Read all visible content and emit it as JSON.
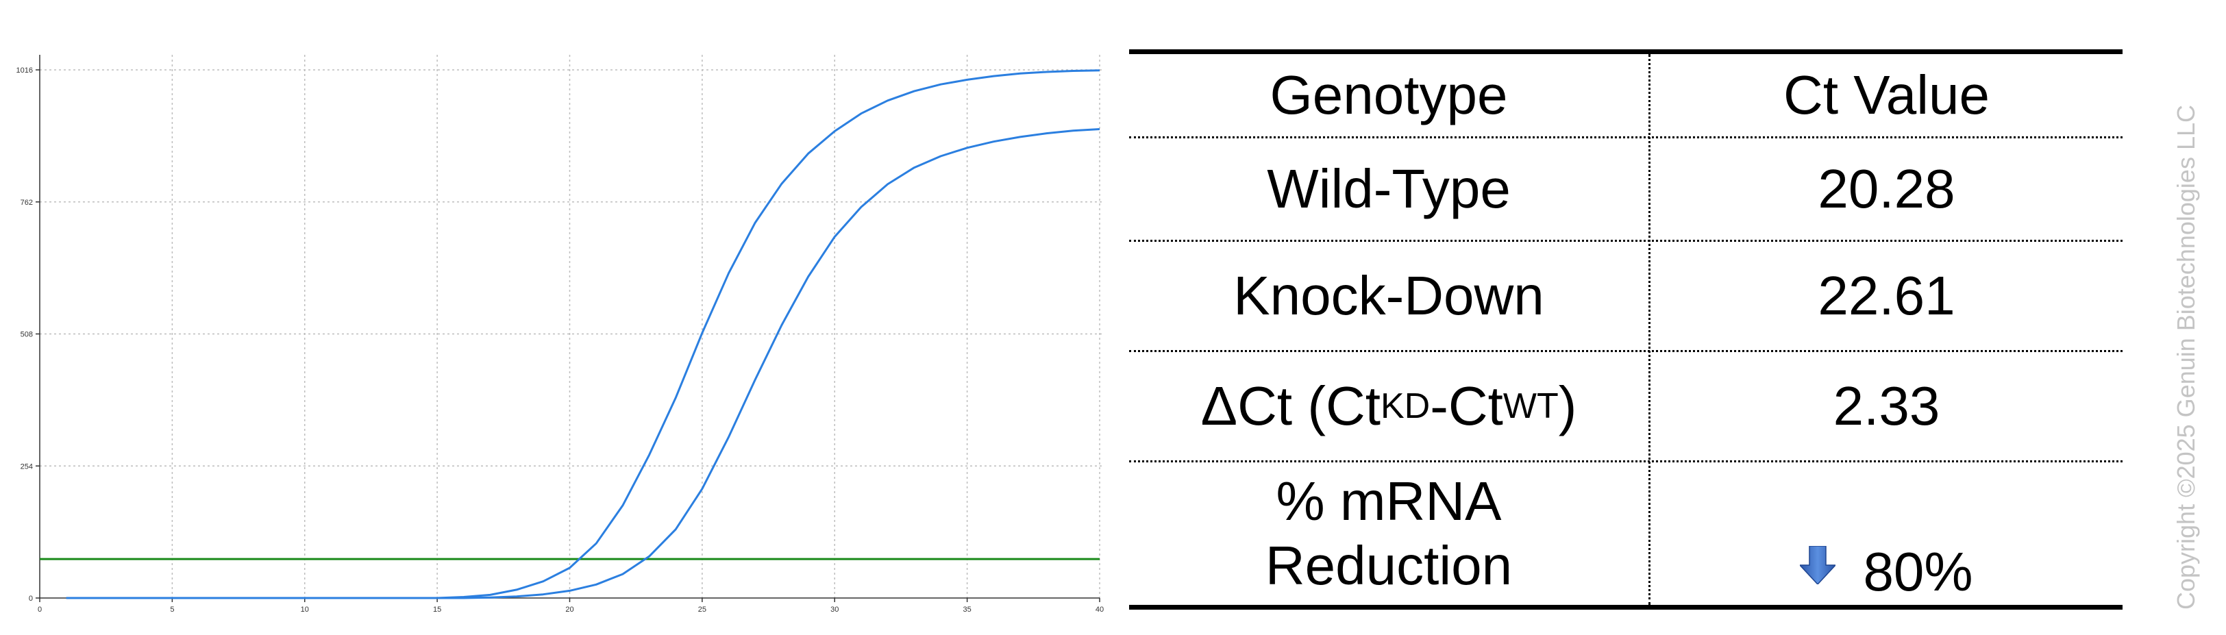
{
  "chart_data": {
    "type": "line",
    "title": "",
    "xlabel": "",
    "ylabel": "",
    "xlim": [
      0,
      40
    ],
    "ylim": [
      0,
      1016
    ],
    "x_ticks": [
      0,
      5,
      10,
      15,
      20,
      25,
      30,
      35,
      40
    ],
    "y_ticks": [
      0,
      254,
      508,
      762,
      1016
    ],
    "grid": true,
    "threshold": 75,
    "colors": {
      "series": "#2b7fe0",
      "threshold": "#1a8a1a",
      "grid": "#bdbdbd"
    },
    "series": [
      {
        "x": [
          1,
          2,
          3,
          4,
          5,
          6,
          7,
          8,
          9,
          10,
          11,
          12,
          13,
          14,
          15,
          16,
          17,
          18,
          19,
          20,
          21,
          22,
          23,
          24,
          25,
          26,
          27,
          28,
          29,
          30,
          31,
          32,
          33,
          34,
          35,
          36,
          37,
          38,
          39,
          40
        ],
        "y": [
          0,
          0,
          0,
          0,
          0,
          0,
          0,
          0,
          0,
          0,
          0,
          0,
          0,
          0,
          0,
          2,
          6,
          16,
          32,
          58,
          105,
          178,
          275,
          385,
          510,
          625,
          722,
          797,
          855,
          898,
          932,
          957,
          975,
          988,
          997,
          1004,
          1009,
          1012,
          1014,
          1015
        ]
      },
      {
        "x": [
          1,
          2,
          3,
          4,
          5,
          6,
          7,
          8,
          9,
          10,
          11,
          12,
          13,
          14,
          15,
          16,
          17,
          18,
          19,
          20,
          21,
          22,
          23,
          24,
          25,
          26,
          27,
          28,
          29,
          30,
          31,
          32,
          33,
          34,
          35,
          36,
          37,
          38,
          39,
          40
        ],
        "y": [
          0,
          0,
          0,
          0,
          0,
          0,
          0,
          0,
          0,
          0,
          0,
          0,
          0,
          0,
          0,
          0,
          1,
          3,
          7,
          14,
          26,
          46,
          80,
          132,
          210,
          310,
          420,
          525,
          618,
          695,
          752,
          796,
          828,
          850,
          866,
          878,
          887,
          894,
          899,
          902
        ]
      }
    ]
  },
  "table": {
    "headers": [
      "Genotype",
      "Ct Value"
    ],
    "rows": [
      {
        "label": "Wild-Type",
        "value": "20.28"
      },
      {
        "label": "Knock-Down",
        "value": "22.61"
      },
      {
        "label_parts": [
          "ΔCt (Ct",
          "KD",
          "-Ct",
          "WT",
          ")"
        ],
        "value": "2.33"
      },
      {
        "label_lines": [
          "% mRNA",
          "Reduction"
        ],
        "icon": "down-arrow-icon",
        "value": "80%"
      }
    ]
  },
  "copyright": "Copyright ©2025 Genuin Biotechnologies LLC"
}
